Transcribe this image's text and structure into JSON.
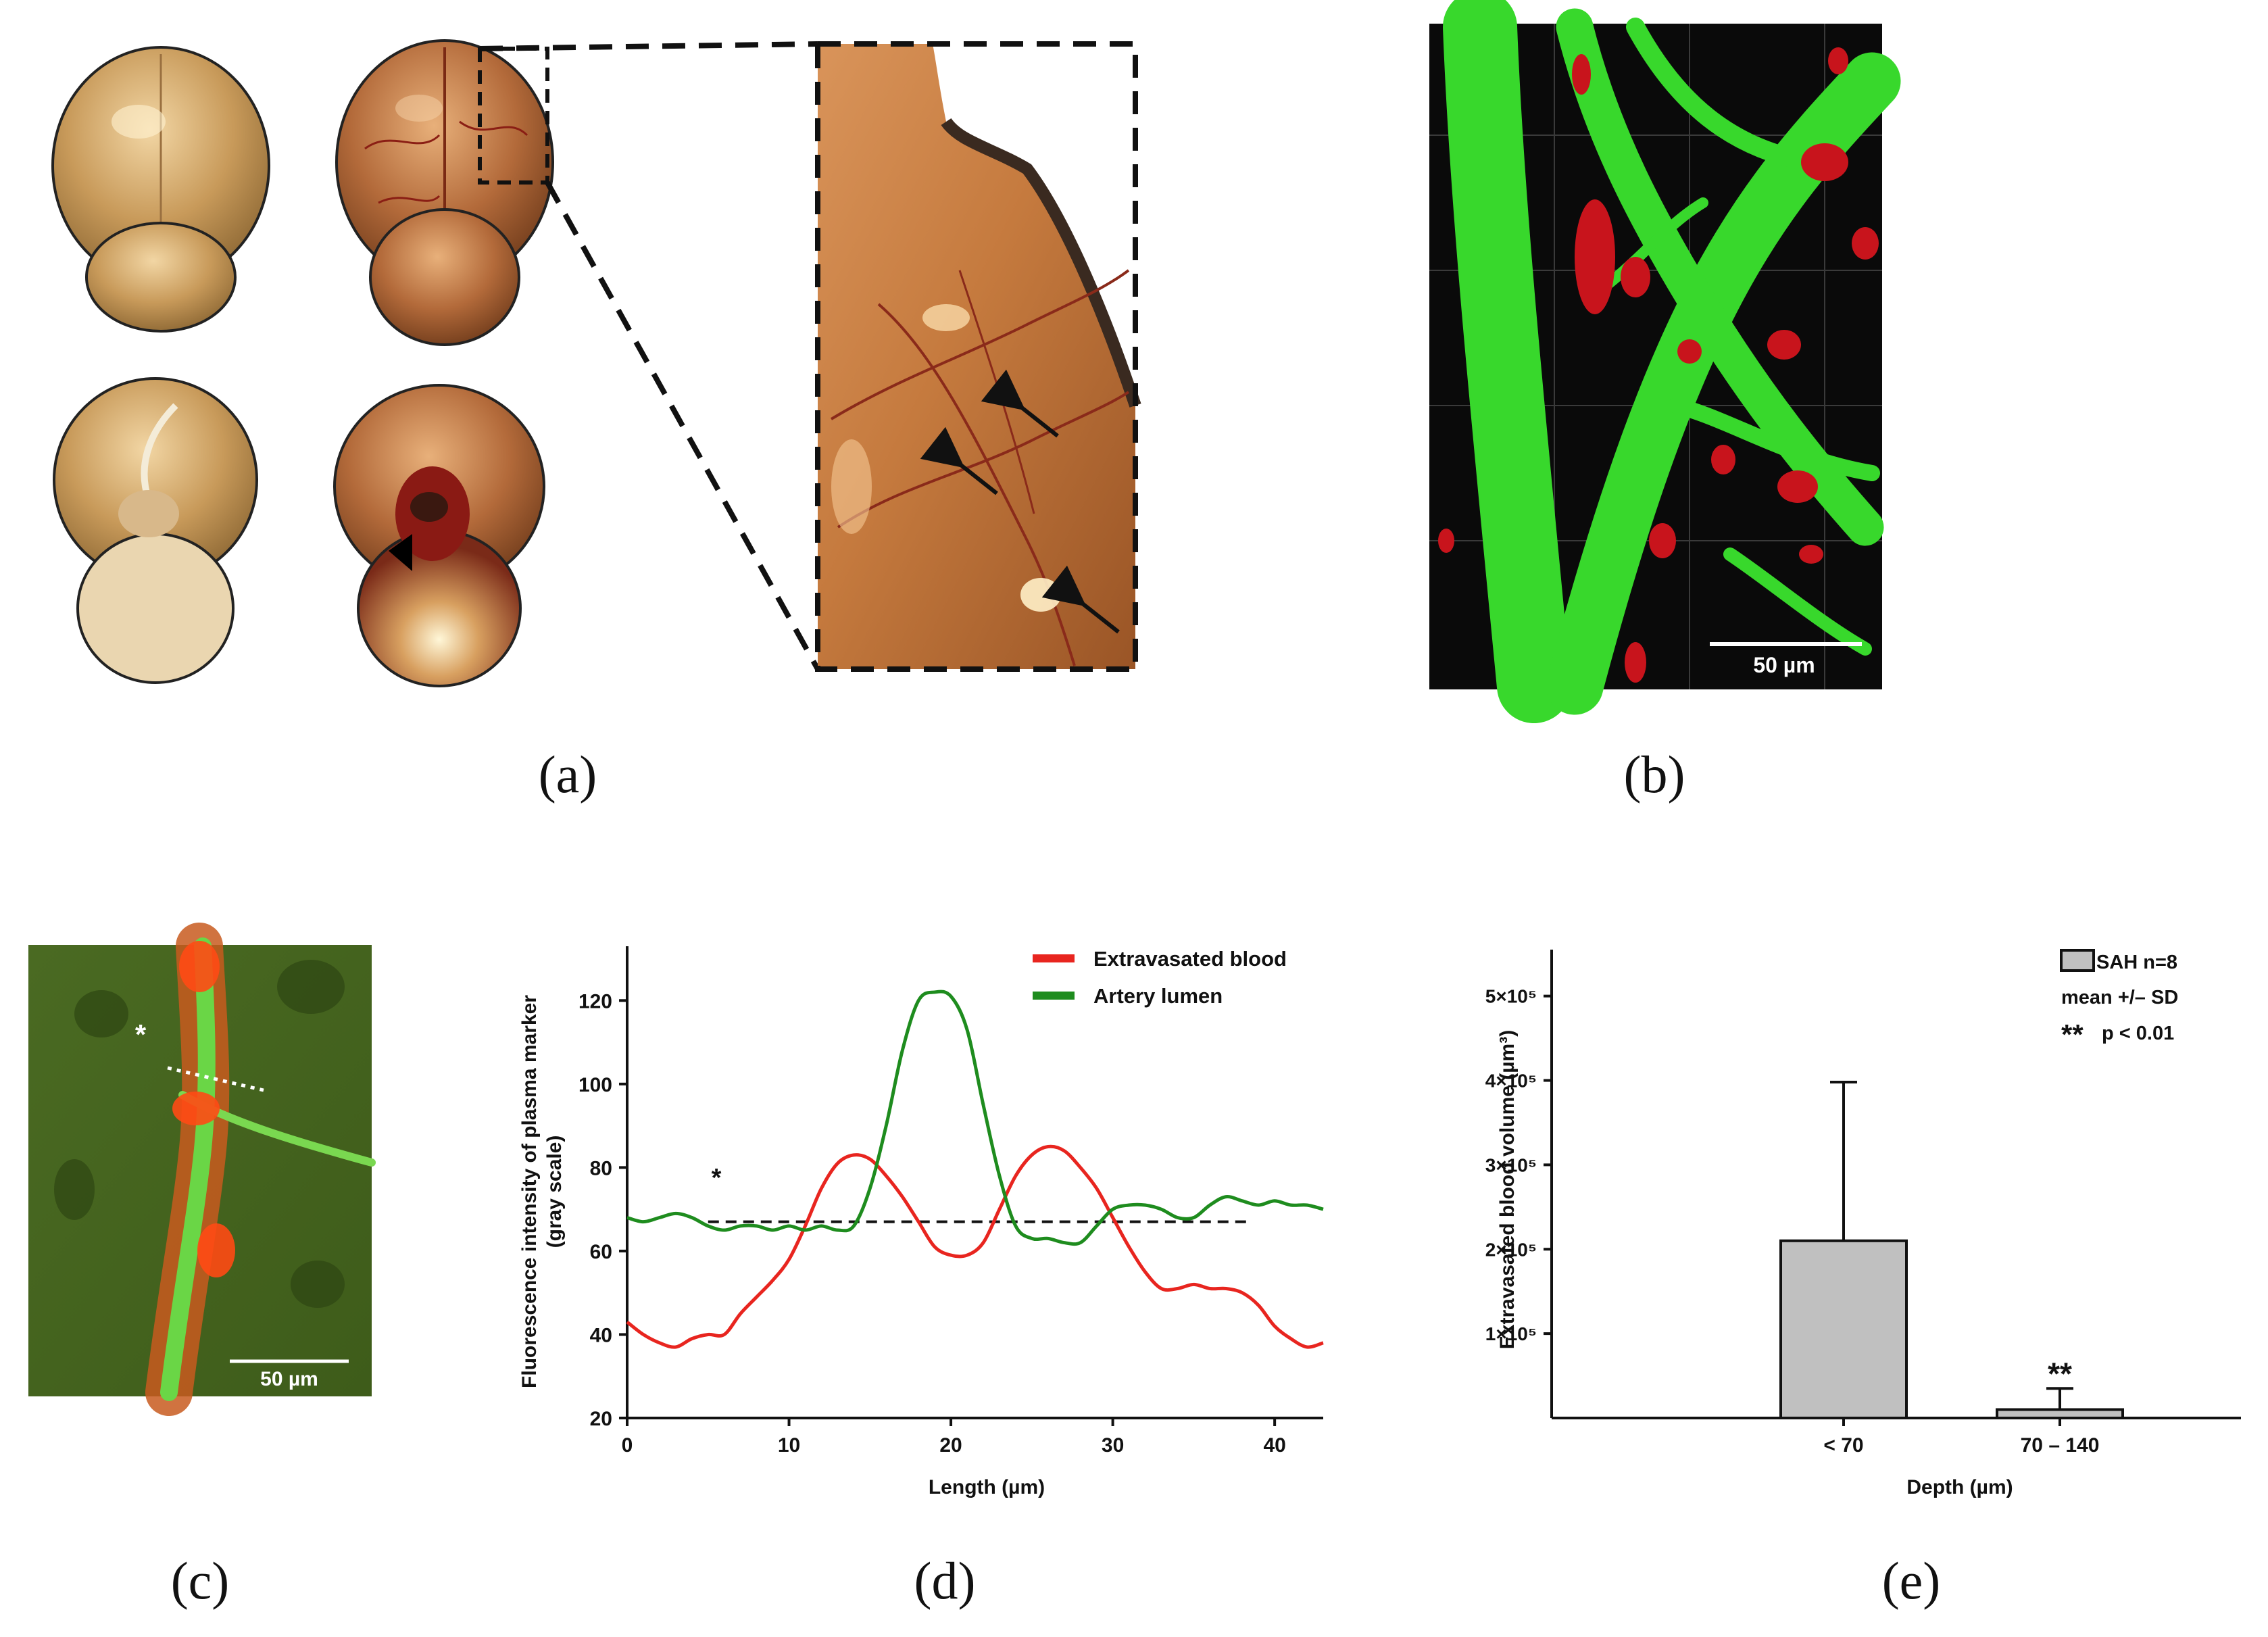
{
  "panels": {
    "a": "(a)",
    "b": "(b)",
    "c": "(c)",
    "d": "(d)",
    "e": "(e)"
  },
  "scale_bars": {
    "b": "50 µm",
    "c": "50 µm"
  },
  "panel_c_marker": "*",
  "colors": {
    "extravasated": "#e8251f",
    "lumen": "#1e8c1e",
    "bar_fill": "#c0c0c0",
    "vessel_green": "#38d82c",
    "blood_red": "#c8141c"
  },
  "chart_data": [
    {
      "type": "line",
      "panel": "d",
      "title": "",
      "xlabel": "Length (µm)",
      "ylabel": "Fluorescence intensity of plasma marker (gray scale)",
      "ylabel_lines": [
        "Fluorescence intensity of plasma marker",
        "(gray scale)"
      ],
      "xlim": [
        0,
        43
      ],
      "ylim": [
        20,
        133
      ],
      "xticks": [
        0,
        10,
        20,
        30,
        40
      ],
      "yticks": [
        20,
        40,
        60,
        80,
        100,
        120
      ],
      "annotation": "*",
      "threshold": {
        "y": 67,
        "x": [
          5,
          38.5
        ]
      },
      "legend": "top-right",
      "series": [
        {
          "name": "Extravasated blood",
          "color": "#e8251f",
          "x": [
            0,
            1,
            2,
            3,
            4,
            5,
            6,
            7,
            8,
            9,
            10,
            11,
            12,
            13,
            14,
            15,
            16,
            17,
            18,
            19,
            20,
            21,
            22,
            23,
            24,
            25,
            26,
            27,
            28,
            29,
            30,
            31,
            32,
            33,
            34,
            35,
            36,
            37,
            38,
            39,
            40,
            41,
            42,
            43
          ],
          "values": [
            43,
            40,
            38,
            37,
            39,
            40,
            40,
            45,
            49,
            53,
            58,
            66,
            75,
            81,
            83,
            82,
            78,
            73,
            67,
            61,
            59,
            59,
            62,
            70,
            78,
            83,
            85,
            84,
            80,
            75,
            68,
            61,
            55,
            51,
            51,
            52,
            51,
            51,
            50,
            47,
            42,
            39,
            37,
            38
          ]
        },
        {
          "name": "Artery lumen",
          "color": "#1e8c1e",
          "x": [
            0,
            1,
            2,
            3,
            4,
            5,
            6,
            7,
            8,
            9,
            10,
            11,
            12,
            13,
            14,
            15,
            16,
            17,
            18,
            19,
            20,
            21,
            22,
            23,
            24,
            25,
            26,
            27,
            28,
            29,
            30,
            31,
            32,
            33,
            34,
            35,
            36,
            37,
            38,
            39,
            40,
            41,
            42,
            43
          ],
          "values": [
            68,
            67,
            68,
            69,
            68,
            66,
            65,
            66,
            66,
            65,
            66,
            65,
            66,
            65,
            66,
            75,
            90,
            108,
            120,
            122,
            121,
            113,
            95,
            78,
            66,
            63,
            63,
            62,
            62,
            66,
            70,
            71,
            71,
            70,
            68,
            68,
            71,
            73,
            72,
            71,
            72,
            71,
            71,
            70
          ]
        }
      ]
    },
    {
      "type": "bar",
      "panel": "e",
      "title": "",
      "xlabel": "Depth (µm)",
      "ylabel": "Extravasated blood volume (µm³)",
      "categories": [
        "< 70",
        "70 – 140"
      ],
      "values": [
        210000,
        10000
      ],
      "errors": [
        188000,
        25000
      ],
      "ylim": [
        0,
        555000
      ],
      "yticks": [
        100000,
        200000,
        300000,
        400000,
        500000
      ],
      "ytick_labels": [
        "1×10⁵",
        "2×10⁵",
        "3×10⁵",
        "4×10⁵",
        "5×10⁵"
      ],
      "significance": [
        "",
        "**"
      ],
      "legend": {
        "position": "top-right",
        "entry": "SAH n=8",
        "line2": "mean +/– SD",
        "stars": "**",
        "pvalue": "p < 0.01"
      }
    }
  ]
}
